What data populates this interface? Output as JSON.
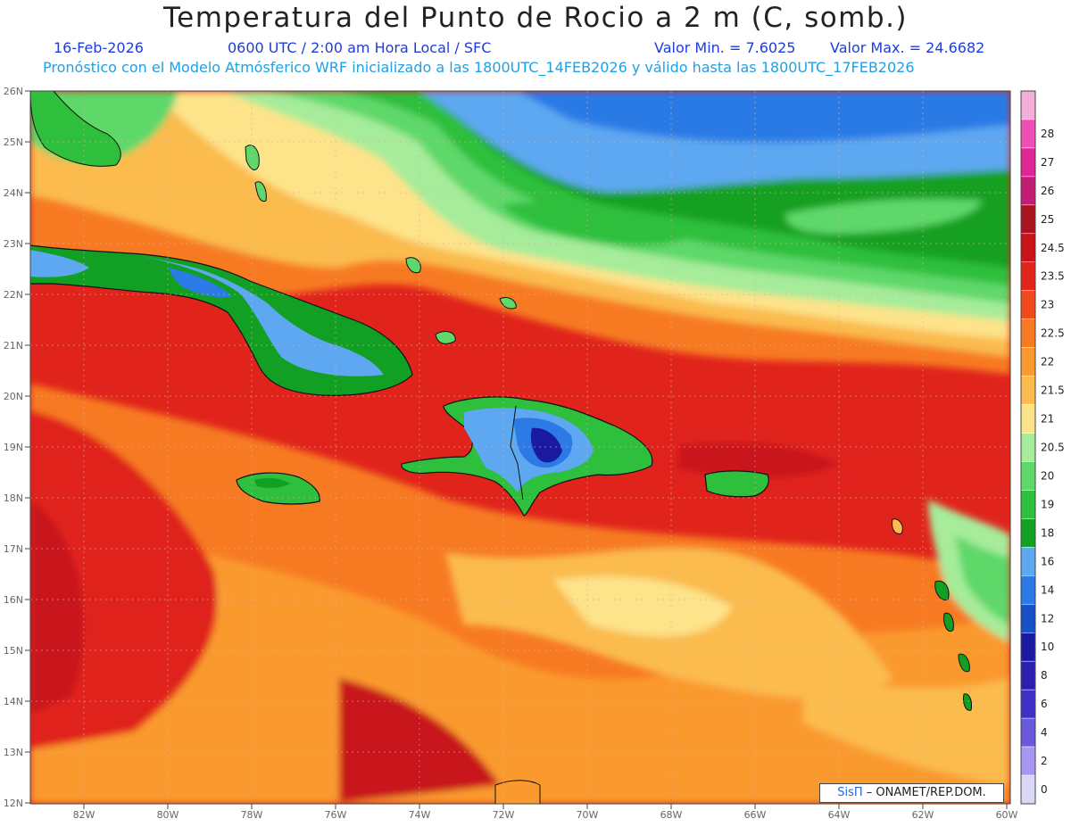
{
  "title": "Temperatura del Punto de Rocio a 2 m (C, somb.)",
  "subtitle": {
    "date": "16-Feb-2026",
    "time": "0600 UTC / 2:00 am Hora Local / SFC",
    "min": "Valor Min. = 7.6025",
    "max": "Valor Max. = 24.6682"
  },
  "model_line": "Pronóstico con el Modelo Atmósferico WRF inicializado a las 1800UTC_14FEB2026 y válido hasta las  1800UTC_17FEB2026",
  "credit": {
    "logo": "SisΠ",
    "text": "– ONAMET/REP.DOM."
  },
  "lat_labels": [
    "26N",
    "25N",
    "24N",
    "23N",
    "22N",
    "21N",
    "20N",
    "19N",
    "18N",
    "17N",
    "16N",
    "15N",
    "14N",
    "13N",
    "12N"
  ],
  "lon_labels": [
    "82W",
    "80W",
    "78W",
    "76W",
    "74W",
    "72W",
    "70W",
    "68W",
    "66W",
    "64W",
    "62W",
    "60W"
  ],
  "colorbar": [
    {
      "label": "",
      "color": "#f4b0d8"
    },
    {
      "label": "28",
      "color": "#ee4fb4"
    },
    {
      "label": "27",
      "color": "#e02595"
    },
    {
      "label": "26",
      "color": "#c41d76"
    },
    {
      "label": "25",
      "color": "#a8141e"
    },
    {
      "label": "24.5",
      "color": "#c8141a"
    },
    {
      "label": "23.5",
      "color": "#e0241c"
    },
    {
      "label": "23",
      "color": "#f04a1e"
    },
    {
      "label": "22.5",
      "color": "#f77a22"
    },
    {
      "label": "22",
      "color": "#fa9a2e"
    },
    {
      "label": "21.5",
      "color": "#fbbb4e"
    },
    {
      "label": "21",
      "color": "#fde38a"
    },
    {
      "label": "20.5",
      "color": "#a6ec9a"
    },
    {
      "label": "20",
      "color": "#5fd86a"
    },
    {
      "label": "19",
      "color": "#2ebf3c"
    },
    {
      "label": "18",
      "color": "#12a024"
    },
    {
      "label": "16",
      "color": "#5da8f0"
    },
    {
      "label": "14",
      "color": "#2b7ae6"
    },
    {
      "label": "12",
      "color": "#1850c8"
    },
    {
      "label": "10",
      "color": "#1a1aa0"
    },
    {
      "label": "8",
      "color": "#2c1fb0"
    },
    {
      "label": "6",
      "color": "#4030c8"
    },
    {
      "label": "4",
      "color": "#6a58dd"
    },
    {
      "label": "2",
      "color": "#a896f0"
    },
    {
      "label": "0",
      "color": "#d8d8f4"
    }
  ],
  "colors": {
    "dark_red": "#c8141a",
    "red": "#e0241c",
    "orange_red": "#f04a1e",
    "orange": "#f77a22",
    "light_orange": "#fa9a2e",
    "peach": "#fbbb4e",
    "yellow": "#fde38a",
    "pale_green": "#a6ec9a",
    "green": "#5fd86a",
    "mid_green": "#2ebf3c",
    "dark_green": "#12a024",
    "light_blue": "#5da8f0",
    "blue": "#2b7ae6",
    "navy": "#1a1aa0"
  }
}
